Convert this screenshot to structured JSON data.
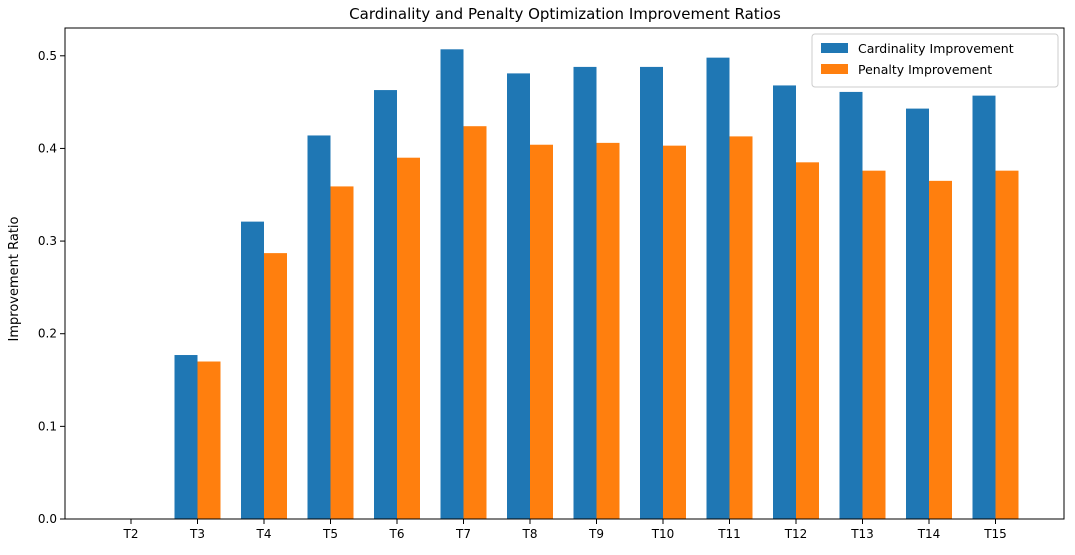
{
  "chart_data": {
    "type": "bar",
    "title": "Cardinality and Penalty Optimization Improvement Ratios",
    "xlabel": "",
    "ylabel": "Improvement Ratio",
    "categories": [
      "T2",
      "T3",
      "T4",
      "T5",
      "T6",
      "T7",
      "T8",
      "T9",
      "T10",
      "T11",
      "T12",
      "T13",
      "T14",
      "T15"
    ],
    "series": [
      {
        "name": "Cardinality Improvement",
        "color": "#1f77b4",
        "values": [
          0.0,
          0.177,
          0.321,
          0.414,
          0.463,
          0.507,
          0.481,
          0.488,
          0.488,
          0.498,
          0.468,
          0.461,
          0.443,
          0.457
        ]
      },
      {
        "name": "Penalty Improvement",
        "color": "#ff7f0e",
        "values": [
          0.0,
          0.17,
          0.287,
          0.359,
          0.39,
          0.424,
          0.404,
          0.406,
          0.403,
          0.413,
          0.385,
          0.376,
          0.365,
          0.376
        ]
      }
    ],
    "ylim": [
      0,
      0.53
    ],
    "yticks": [
      "0.0",
      "0.1",
      "0.2",
      "0.3",
      "0.4",
      "0.5"
    ],
    "ytick_values": [
      0.0,
      0.1,
      0.2,
      0.3,
      0.4,
      0.5
    ],
    "grid": false,
    "legend_position": "top-right"
  }
}
